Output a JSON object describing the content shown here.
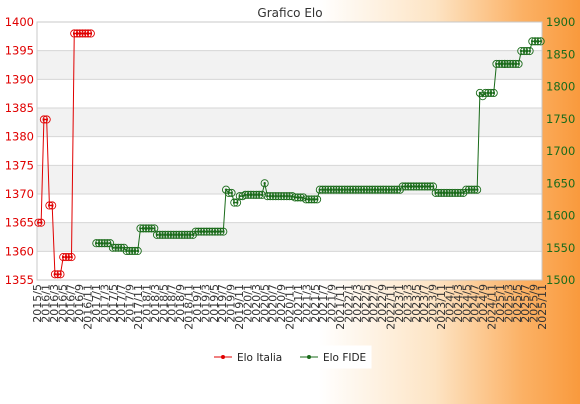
{
  "chart_data": {
    "type": "line",
    "title": "Grafico Elo",
    "legend": {
      "placement": "bottom-center"
    },
    "grid": true,
    "left_axis": {
      "min": 1355,
      "max": 1400,
      "step": 5,
      "color": "#e00000"
    },
    "right_axis": {
      "min": 1500,
      "max": 1900,
      "step": 50,
      "color": "#1a6b1a"
    },
    "x_tick_labels": [
      "2015/5",
      "2016/1",
      "2016/3",
      "2016/5",
      "2016/7",
      "2016/9",
      "2016/11",
      "2017/1",
      "2017/3",
      "2017/5",
      "2017/7",
      "2017/9",
      "2017/11",
      "2018/1",
      "2018/3",
      "2018/5",
      "2018/7",
      "2018/9",
      "2018/11",
      "2019/1",
      "2019/3",
      "2019/5",
      "2019/7",
      "2019/9",
      "2019/11",
      "2020/1",
      "2020/3",
      "2020/5",
      "2020/7",
      "2020/9",
      "2020/11",
      "2021/1",
      "2021/3",
      "2021/5",
      "2021/7",
      "2021/9",
      "2021/11",
      "2022/1",
      "2022/3",
      "2022/5",
      "2022/7",
      "2022/9",
      "2022/11",
      "2023/1",
      "2023/3",
      "2023/5",
      "2023/7",
      "2023/9",
      "2023/11",
      "2024/1",
      "2024/3",
      "2024/5",
      "2024/7",
      "2024/9",
      "2024/11",
      "2025/1",
      "2025/3",
      "2025/5",
      "2025/7",
      "2025/9",
      "2025/11"
    ],
    "series": [
      {
        "name": "Elo Italia",
        "axis": "left",
        "color": "#e00000",
        "points": [
          [
            0,
            1365
          ],
          [
            1,
            1365
          ],
          [
            2,
            1383
          ],
          [
            3,
            1383
          ],
          [
            4,
            1368
          ],
          [
            5,
            1368
          ],
          [
            6,
            1356
          ],
          [
            7,
            1356
          ],
          [
            8,
            1356
          ],
          [
            9,
            1359
          ],
          [
            10,
            1359
          ],
          [
            11,
            1359
          ],
          [
            12,
            1359
          ],
          [
            13,
            1398
          ],
          [
            14,
            1398
          ],
          [
            15,
            1398
          ],
          [
            16,
            1398
          ],
          [
            17,
            1398
          ],
          [
            18,
            1398
          ],
          [
            19,
            1398
          ]
        ]
      },
      {
        "name": "Elo FIDE",
        "axis": "right",
        "color": "#1a6b1a",
        "points": [
          [
            21,
            1557
          ],
          [
            22,
            1557
          ],
          [
            23,
            1557
          ],
          [
            24,
            1557
          ],
          [
            25,
            1557
          ],
          [
            26,
            1557
          ],
          [
            27,
            1550
          ],
          [
            28,
            1550
          ],
          [
            29,
            1550
          ],
          [
            30,
            1550
          ],
          [
            31,
            1550
          ],
          [
            32,
            1545
          ],
          [
            33,
            1545
          ],
          [
            34,
            1545
          ],
          [
            35,
            1545
          ],
          [
            36,
            1545
          ],
          [
            37,
            1580
          ],
          [
            38,
            1580
          ],
          [
            39,
            1580
          ],
          [
            40,
            1580
          ],
          [
            41,
            1580
          ],
          [
            42,
            1580
          ],
          [
            43,
            1570
          ],
          [
            44,
            1570
          ],
          [
            45,
            1570
          ],
          [
            46,
            1570
          ],
          [
            47,
            1570
          ],
          [
            48,
            1570
          ],
          [
            49,
            1570
          ],
          [
            50,
            1570
          ],
          [
            51,
            1570
          ],
          [
            52,
            1570
          ],
          [
            53,
            1570
          ],
          [
            54,
            1570
          ],
          [
            55,
            1570
          ],
          [
            56,
            1570
          ],
          [
            57,
            1575
          ],
          [
            58,
            1575
          ],
          [
            59,
            1575
          ],
          [
            60,
            1575
          ],
          [
            61,
            1575
          ],
          [
            62,
            1575
          ],
          [
            63,
            1575
          ],
          [
            64,
            1575
          ],
          [
            65,
            1575
          ],
          [
            66,
            1575
          ],
          [
            67,
            1575
          ],
          [
            68,
            1640
          ],
          [
            69,
            1635
          ],
          [
            70,
            1635
          ],
          [
            71,
            1620
          ],
          [
            72,
            1620
          ],
          [
            73,
            1630
          ],
          [
            74,
            1630
          ],
          [
            75,
            1632
          ],
          [
            76,
            1632
          ],
          [
            77,
            1632
          ],
          [
            78,
            1632
          ],
          [
            79,
            1632
          ],
          [
            80,
            1632
          ],
          [
            81,
            1632
          ],
          [
            82,
            1650
          ],
          [
            83,
            1630
          ],
          [
            84,
            1630
          ],
          [
            85,
            1630
          ],
          [
            86,
            1630
          ],
          [
            87,
            1630
          ],
          [
            88,
            1630
          ],
          [
            89,
            1630
          ],
          [
            90,
            1630
          ],
          [
            91,
            1630
          ],
          [
            92,
            1630
          ],
          [
            93,
            1628
          ],
          [
            94,
            1628
          ],
          [
            95,
            1628
          ],
          [
            96,
            1628
          ],
          [
            97,
            1625
          ],
          [
            98,
            1625
          ],
          [
            99,
            1625
          ],
          [
            100,
            1625
          ],
          [
            101,
            1625
          ],
          [
            102,
            1640
          ],
          [
            103,
            1640
          ],
          [
            104,
            1640
          ],
          [
            105,
            1640
          ],
          [
            106,
            1640
          ],
          [
            107,
            1640
          ],
          [
            108,
            1640
          ],
          [
            109,
            1640
          ],
          [
            110,
            1640
          ],
          [
            111,
            1640
          ],
          [
            112,
            1640
          ],
          [
            113,
            1640
          ],
          [
            114,
            1640
          ],
          [
            115,
            1640
          ],
          [
            116,
            1640
          ],
          [
            117,
            1640
          ],
          [
            118,
            1640
          ],
          [
            119,
            1640
          ],
          [
            120,
            1640
          ],
          [
            121,
            1640
          ],
          [
            122,
            1640
          ],
          [
            123,
            1640
          ],
          [
            124,
            1640
          ],
          [
            125,
            1640
          ],
          [
            126,
            1640
          ],
          [
            127,
            1640
          ],
          [
            128,
            1640
          ],
          [
            129,
            1640
          ],
          [
            130,
            1640
          ],
          [
            131,
            1640
          ],
          [
            132,
            1645
          ],
          [
            133,
            1645
          ],
          [
            134,
            1645
          ],
          [
            135,
            1645
          ],
          [
            136,
            1645
          ],
          [
            137,
            1645
          ],
          [
            138,
            1645
          ],
          [
            139,
            1645
          ],
          [
            140,
            1645
          ],
          [
            141,
            1645
          ],
          [
            142,
            1645
          ],
          [
            143,
            1645
          ],
          [
            144,
            1635
          ],
          [
            145,
            1635
          ],
          [
            146,
            1635
          ],
          [
            147,
            1635
          ],
          [
            148,
            1635
          ],
          [
            149,
            1635
          ],
          [
            150,
            1635
          ],
          [
            151,
            1635
          ],
          [
            152,
            1635
          ],
          [
            153,
            1635
          ],
          [
            154,
            1635
          ],
          [
            155,
            1640
          ],
          [
            156,
            1640
          ],
          [
            157,
            1640
          ],
          [
            158,
            1640
          ],
          [
            159,
            1640
          ],
          [
            160,
            1790
          ],
          [
            161,
            1785
          ],
          [
            162,
            1790
          ],
          [
            163,
            1790
          ],
          [
            164,
            1790
          ],
          [
            165,
            1790
          ],
          [
            166,
            1835
          ],
          [
            167,
            1835
          ],
          [
            168,
            1835
          ],
          [
            169,
            1835
          ],
          [
            169,
            1835
          ],
          [
            170,
            1835
          ],
          [
            171,
            1835
          ],
          [
            172,
            1835
          ],
          [
            173,
            1835
          ],
          [
            174,
            1835
          ],
          [
            175,
            1855
          ],
          [
            176,
            1855
          ],
          [
            177,
            1855
          ],
          [
            178,
            1855
          ],
          [
            179,
            1870
          ],
          [
            180,
            1870
          ],
          [
            181,
            1870
          ],
          [
            182,
            1870
          ]
        ]
      }
    ]
  }
}
